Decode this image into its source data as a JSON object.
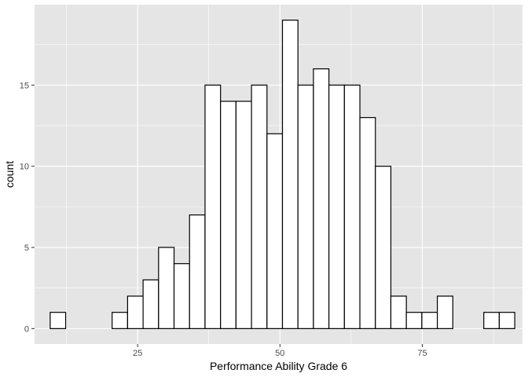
{
  "chart_data": {
    "type": "bar",
    "title": "",
    "xlabel": "Performance Ability Grade 6",
    "ylabel": "count",
    "xlim": [
      6.9,
      92.6
    ],
    "ylim": [
      -0.95,
      19.95
    ],
    "x_ticks": [
      {
        "value": 25,
        "label": "25"
      },
      {
        "value": 50,
        "label": "50"
      },
      {
        "value": 75,
        "label": "75"
      }
    ],
    "y_ticks": [
      {
        "value": 0,
        "label": "0"
      },
      {
        "value": 5,
        "label": "5"
      },
      {
        "value": 10,
        "label": "10"
      },
      {
        "value": 15,
        "label": "15"
      }
    ],
    "bin_width": 2.72,
    "bin_centers": [
      11.0,
      13.72,
      16.44,
      19.16,
      21.88,
      24.6,
      27.32,
      30.04,
      32.76,
      35.48,
      38.2,
      40.92,
      43.64,
      46.36,
      49.08,
      51.8,
      54.52,
      57.24,
      59.96,
      62.68,
      65.4,
      68.12,
      70.84,
      73.56,
      76.28,
      79.0,
      81.72,
      84.44,
      87.16,
      89.88
    ],
    "values": [
      1,
      0,
      0,
      0,
      1,
      2,
      3,
      5,
      4,
      7,
      15,
      14,
      14,
      15,
      12,
      19,
      15,
      16,
      15,
      15,
      13,
      10,
      2,
      1,
      1,
      2,
      0,
      0,
      1,
      1
    ],
    "grid": true,
    "colors": {
      "panel_background": "#e5e5e5",
      "grid_major": "#ffffff",
      "bar_fill": "#ffffff",
      "bar_outline": "#000000"
    }
  }
}
